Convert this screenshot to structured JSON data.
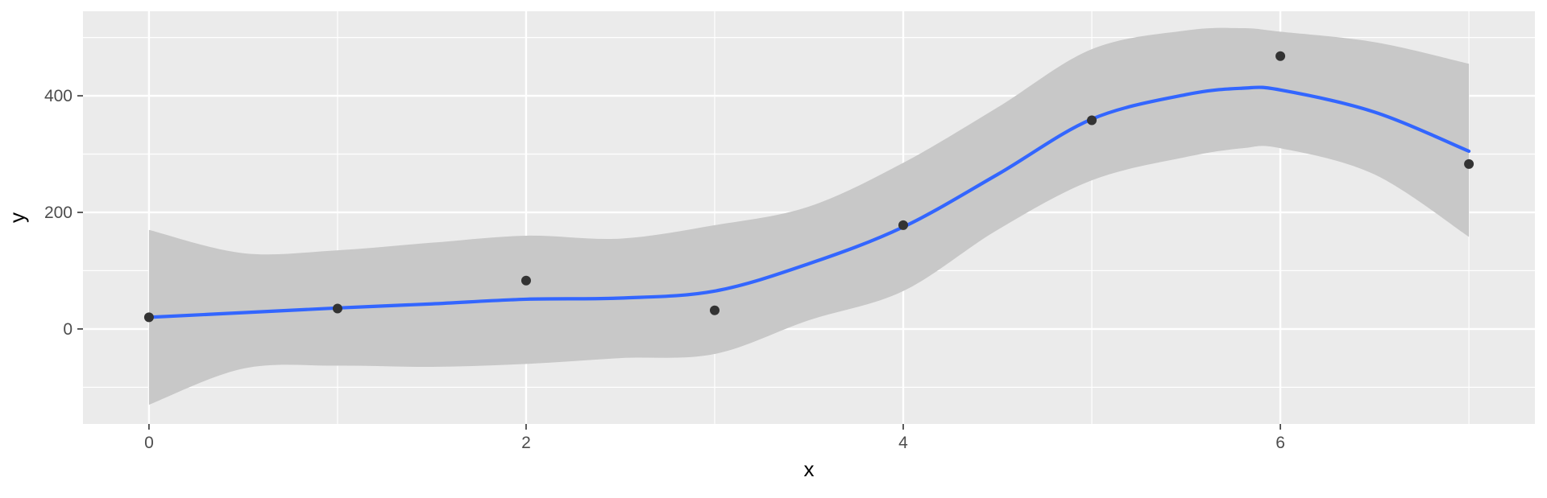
{
  "chart_data": {
    "type": "scatter",
    "title": "",
    "xlabel": "x",
    "ylabel": "y",
    "xlim": [
      -0.35,
      7.35
    ],
    "ylim": [
      -163,
      545
    ],
    "x_ticks": [
      0,
      2,
      4,
      6
    ],
    "x_tick_labels": [
      "0",
      "2",
      "4",
      "6"
    ],
    "x_minor_ticks": [
      1,
      3,
      5,
      7
    ],
    "y_ticks": [
      0,
      200,
      400
    ],
    "y_tick_labels": [
      "0",
      "200",
      "400"
    ],
    "y_minor_ticks": [
      -100,
      100,
      300,
      500
    ],
    "grid": true,
    "legend": "none",
    "points": {
      "x": [
        0,
        1,
        2,
        3,
        4,
        5,
        6,
        7
      ],
      "y": [
        20,
        35,
        83,
        32,
        178,
        358,
        468,
        283
      ]
    },
    "smooth": {
      "method": "loess",
      "x": [
        0,
        0.5,
        1,
        1.5,
        2,
        2.5,
        3,
        3.5,
        4,
        4.5,
        5,
        5.5,
        5.8,
        6,
        6.5,
        7
      ],
      "y": [
        20,
        28,
        36,
        43,
        51,
        53,
        65,
        112,
        175,
        265,
        360,
        402,
        413,
        410,
        372,
        305
      ],
      "ci_upper": [
        170,
        130,
        135,
        148,
        160,
        155,
        178,
        210,
        285,
        380,
        480,
        512,
        516,
        510,
        492,
        455
      ],
      "ci_lower": [
        -130,
        -68,
        -63,
        -65,
        -60,
        -50,
        -43,
        15,
        65,
        170,
        255,
        295,
        310,
        310,
        265,
        158
      ]
    },
    "colors": {
      "panel_background": "#EBEBEB",
      "grid": "#FFFFFF",
      "point": "#333333",
      "smooth_line": "#3366FF",
      "ci_band": "#C8C8C8",
      "axis_text": "#4D4D4D",
      "axis_title": "#000000"
    }
  }
}
